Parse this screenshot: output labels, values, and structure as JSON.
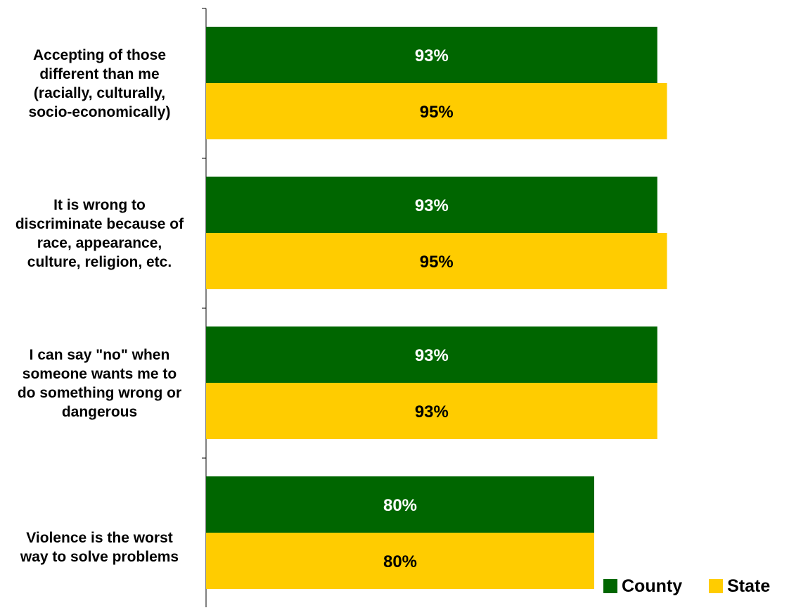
{
  "chart_data": {
    "type": "bar",
    "orientation": "horizontal",
    "categories": [
      "Accepting of those different than me (racially, culturally, socio-economically)",
      "It is wrong to discriminate because of race, appearance, culture, religion, etc.",
      "I can say \"no\" when someone wants me to do something wrong or dangerous",
      "Violence is the worst way to solve problems"
    ],
    "category_label_lines": [
      [
        "Accepting of those",
        "different than me",
        "(racially, culturally,",
        "socio-economically)"
      ],
      [
        "It is wrong to",
        "discriminate because of",
        "race, appearance,",
        "culture, religion, etc."
      ],
      [
        "I can say \"no\" when",
        "someone wants me to",
        "do something wrong or",
        "dangerous"
      ],
      [
        "Violence is the worst",
        "way to solve problems"
      ]
    ],
    "series": [
      {
        "name": "County",
        "color": "#006600",
        "label_color": "#ffffff",
        "values": [
          93,
          93,
          93,
          80
        ],
        "labels": [
          "93%",
          "93%",
          "93%",
          "80%"
        ]
      },
      {
        "name": "State",
        "color": "#ffcc00",
        "label_color": "#000000",
        "values": [
          95,
          95,
          93,
          80
        ],
        "labels": [
          "95%",
          "95%",
          "93%",
          "80%"
        ]
      }
    ],
    "xlim": [
      0,
      100
    ],
    "grid": false,
    "legend_position": "bottom-right"
  }
}
